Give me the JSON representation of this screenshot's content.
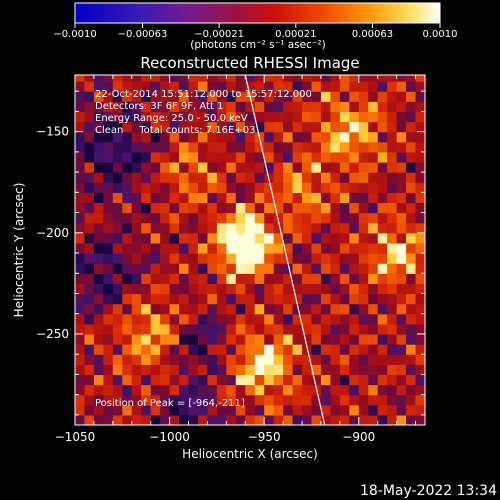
{
  "chart_data": {
    "type": "heatmap",
    "title": "Reconstructed RHESSI Image",
    "colorbar": {
      "min": -0.001,
      "max": 0.001,
      "tick_labels": [
        "-0.0010",
        "-0.00063",
        "-0.00021",
        "0.00021",
        "0.00063",
        "0.0010"
      ],
      "units_label": "(photons cm⁻² s⁻¹ asec⁻²)"
    },
    "xlabel": "Heliocentric X (arcsec)",
    "ylabel": "Heliocentric Y (arcsec)",
    "xlim": [
      -1050,
      -865
    ],
    "ylim": [
      -295,
      -122
    ],
    "xticks": [
      -1050,
      -1000,
      -950,
      -900
    ],
    "xtick_labels": [
      "−1050",
      "−1000",
      "−950",
      "−900"
    ],
    "yticks": [
      -150,
      -200,
      -250
    ],
    "ytick_labels": [
      "−150",
      "−200",
      "−250"
    ],
    "annotations": [
      "22-Oct-2014 15:51:12.000 to 15:57:12.000",
      "Detectors: 3F 6F 9F, Att 1",
      "Energy Range: 25.0 - 50.0 keV",
      "Clean     Total counts: 7.16E+03"
    ],
    "peak_label": "Position of Peak = [-964,-211]",
    "peak": [
      -964,
      -211
    ],
    "limb_line": [
      [
        -960,
        -122
      ],
      [
        -918,
        -295
      ]
    ],
    "grid": false
  },
  "footer": {
    "timestamp": "18-May-2022 13:34"
  },
  "colors": {
    "background": "#000000",
    "foreground": "#ffffff",
    "limb": "#ffffff"
  }
}
